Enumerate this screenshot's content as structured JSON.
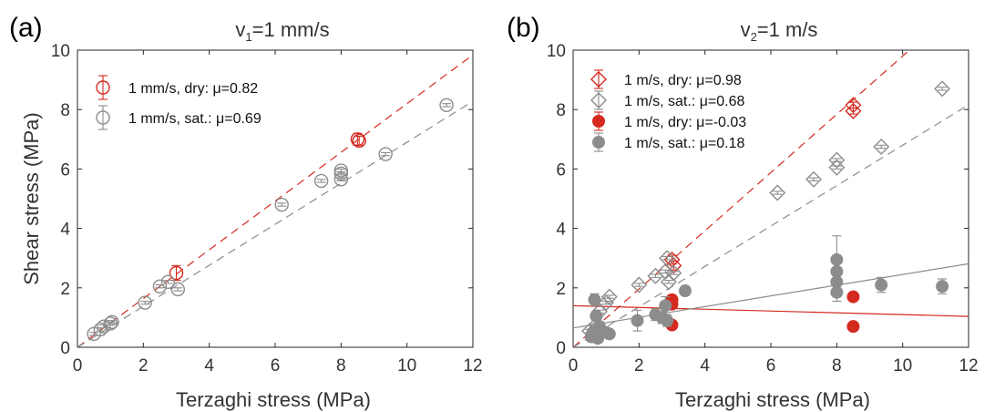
{
  "chart_data": [
    {
      "panel_label": "(a)",
      "title_main": "v",
      "title_sub": "1",
      "title_rest": "=1 mm/s",
      "type": "scatter",
      "xlabel": "Terzaghi stress (MPa)",
      "ylabel": "Shear stress (MPa)",
      "xlim": [
        0,
        12
      ],
      "ylim": [
        0,
        10
      ],
      "xticks": [
        "0",
        "2",
        "4",
        "6",
        "8",
        "10",
        "12"
      ],
      "yticks": [
        "0",
        "2",
        "4",
        "6",
        "8",
        "10"
      ],
      "legend_position": "top-left",
      "series": [
        {
          "name": "1 mm/s, dry: μ=0.82",
          "color": "#d42a20",
          "marker": "circle-open",
          "fit_slope": 0.82,
          "fit_intercept": 0.0,
          "fit_style": "dashed",
          "points": [
            {
              "x": 3.0,
              "y": 2.5,
              "err": 0.25
            },
            {
              "x": 8.5,
              "y": 7.0,
              "err": 0.2
            },
            {
              "x": 8.55,
              "y": 6.95,
              "err": 0.15
            }
          ]
        },
        {
          "name": "1 mm/s, sat.: μ=0.69",
          "color": "#8c8c8c",
          "marker": "circle-open",
          "fit_slope": 0.69,
          "fit_intercept": 0.0,
          "fit_style": "dashed",
          "points": [
            {
              "x": 0.5,
              "y": 0.45,
              "err": 0.05
            },
            {
              "x": 0.7,
              "y": 0.6,
              "err": 0.05
            },
            {
              "x": 0.8,
              "y": 0.7,
              "err": 0.05
            },
            {
              "x": 1.0,
              "y": 0.8,
              "err": 0.05
            },
            {
              "x": 1.05,
              "y": 0.85,
              "err": 0.05
            },
            {
              "x": 2.05,
              "y": 1.5,
              "err": 0.05
            },
            {
              "x": 2.5,
              "y": 2.05,
              "err": 0.05
            },
            {
              "x": 2.75,
              "y": 2.2,
              "err": 0.05
            },
            {
              "x": 3.05,
              "y": 1.95,
              "err": 0.05
            },
            {
              "x": 6.2,
              "y": 4.8,
              "err": 0.05
            },
            {
              "x": 7.4,
              "y": 5.6,
              "err": 0.05
            },
            {
              "x": 8.0,
              "y": 5.65,
              "err": 0.05
            },
            {
              "x": 8.0,
              "y": 5.85,
              "err": 0.05
            },
            {
              "x": 8.0,
              "y": 5.95,
              "err": 0.05
            },
            {
              "x": 9.35,
              "y": 6.5,
              "err": 0.05
            },
            {
              "x": 11.2,
              "y": 8.15,
              "err": 0.05
            }
          ]
        }
      ]
    },
    {
      "panel_label": "(b)",
      "title_main": "v",
      "title_sub": "2",
      "title_rest": "=1 m/s",
      "type": "scatter",
      "xlabel": "Terzaghi stress (MPa)",
      "ylabel": "",
      "xlim": [
        0,
        12
      ],
      "ylim": [
        0,
        10
      ],
      "xticks": [
        "0",
        "2",
        "4",
        "6",
        "8",
        "10",
        "12"
      ],
      "yticks": [
        "0",
        "2",
        "4",
        "6",
        "8",
        "10"
      ],
      "legend_position": "top-left",
      "series": [
        {
          "name": "1 m/s, dry: μ=0.98",
          "color": "#d42a20",
          "marker": "diamond-open",
          "fit_slope": 0.98,
          "fit_intercept": 0.0,
          "fit_style": "dashed",
          "points": [
            {
              "x": 3.0,
              "y": 2.95,
              "err": 0.15
            },
            {
              "x": 3.05,
              "y": 2.75,
              "err": 0.15
            },
            {
              "x": 8.5,
              "y": 8.15,
              "err": 0.1
            },
            {
              "x": 8.5,
              "y": 7.95,
              "err": 0.1
            }
          ]
        },
        {
          "name": "1 m/s, sat.: μ=0.68",
          "color": "#8c8c8c",
          "marker": "diamond-open",
          "fit_slope": 0.68,
          "fit_intercept": 0.0,
          "fit_style": "dashed",
          "points": [
            {
              "x": 0.5,
              "y": 0.55,
              "err": 0.05
            },
            {
              "x": 0.7,
              "y": 0.75,
              "err": 0.05
            },
            {
              "x": 0.8,
              "y": 1.2,
              "err": 0.05
            },
            {
              "x": 1.0,
              "y": 1.5,
              "err": 0.05
            },
            {
              "x": 1.1,
              "y": 1.7,
              "err": 0.05
            },
            {
              "x": 2.0,
              "y": 2.1,
              "err": 0.05
            },
            {
              "x": 2.5,
              "y": 2.4,
              "err": 0.05
            },
            {
              "x": 2.8,
              "y": 2.55,
              "err": 0.05
            },
            {
              "x": 2.85,
              "y": 3.0,
              "err": 0.05
            },
            {
              "x": 2.9,
              "y": 2.2,
              "err": 0.05
            },
            {
              "x": 3.05,
              "y": 2.5,
              "err": 0.05
            },
            {
              "x": 6.2,
              "y": 5.2,
              "err": 0.05
            },
            {
              "x": 7.3,
              "y": 5.65,
              "err": 0.05
            },
            {
              "x": 8.0,
              "y": 6.05,
              "err": 0.05
            },
            {
              "x": 8.0,
              "y": 6.3,
              "err": 0.05
            },
            {
              "x": 9.35,
              "y": 6.75,
              "err": 0.05
            },
            {
              "x": 11.2,
              "y": 8.7,
              "err": 0.05
            }
          ]
        },
        {
          "name": "1 m/s, dry: μ=-0.03",
          "color": "#d42a20",
          "marker": "circle-filled",
          "fit_slope": -0.03,
          "fit_intercept": 1.4,
          "fit_style": "solid",
          "points": [
            {
              "x": 3.0,
              "y": 1.6,
              "err": 0.15
            },
            {
              "x": 3.0,
              "y": 1.45,
              "err": 0.1
            },
            {
              "x": 3.0,
              "y": 0.75,
              "err": 0.1
            },
            {
              "x": 8.5,
              "y": 1.7,
              "err": 0.1
            },
            {
              "x": 8.5,
              "y": 0.7,
              "err": 0.1
            }
          ]
        },
        {
          "name": "1 m/s, sat.: μ=0.18",
          "color": "#8c8c8c",
          "marker": "circle-filled",
          "fit_slope": 0.18,
          "fit_intercept": 0.65,
          "fit_style": "solid",
          "points": [
            {
              "x": 0.55,
              "y": 0.35,
              "err": 0.05
            },
            {
              "x": 0.6,
              "y": 0.5,
              "err": 0.1
            },
            {
              "x": 0.65,
              "y": 1.6,
              "err": 0.2
            },
            {
              "x": 0.7,
              "y": 1.05,
              "err": 0.15
            },
            {
              "x": 0.75,
              "y": 0.3,
              "err": 0.1
            },
            {
              "x": 0.8,
              "y": 0.7,
              "err": 0.1
            },
            {
              "x": 1.0,
              "y": 0.5,
              "err": 0.1
            },
            {
              "x": 1.1,
              "y": 0.45,
              "err": 0.1
            },
            {
              "x": 1.95,
              "y": 0.9,
              "err": 0.35
            },
            {
              "x": 2.5,
              "y": 1.1,
              "err": 0.2
            },
            {
              "x": 2.7,
              "y": 1.0,
              "err": 0.2
            },
            {
              "x": 2.8,
              "y": 1.4,
              "err": 0.3
            },
            {
              "x": 2.85,
              "y": 0.9,
              "err": 0.2
            },
            {
              "x": 3.4,
              "y": 1.9,
              "err": 0.15
            },
            {
              "x": 8.0,
              "y": 1.85,
              "err": 0.3
            },
            {
              "x": 8.0,
              "y": 2.2,
              "err": 0.3
            },
            {
              "x": 8.0,
              "y": 2.55,
              "err": 0.3
            },
            {
              "x": 8.0,
              "y": 2.95,
              "err": 0.8
            },
            {
              "x": 9.35,
              "y": 2.1,
              "err": 0.25
            },
            {
              "x": 11.2,
              "y": 2.05,
              "err": 0.25
            }
          ]
        }
      ]
    }
  ]
}
